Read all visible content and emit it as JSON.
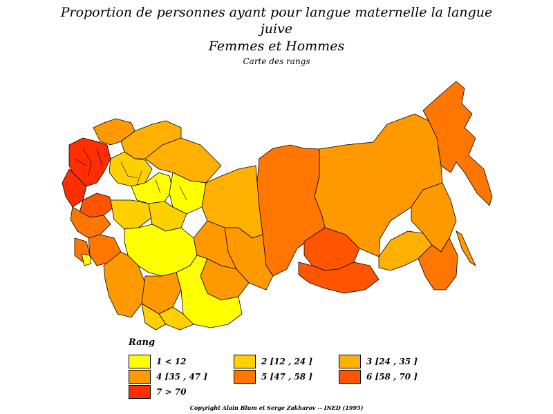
{
  "title_line1": "Proportion de personnes ayant pour langue maternelle la langue",
  "title_line2": "juive",
  "subtitle": "Femmes et Hommes",
  "caption": "Carte des rangs",
  "legend": {
    "title": "Rang",
    "items": [
      {
        "label": "1  <  12",
        "color": "#ffff00"
      },
      {
        "label": "2  [12 ,  24 ]",
        "color": "#ffd000"
      },
      {
        "label": "3  [24 ,  35 ]",
        "color": "#ffb000"
      },
      {
        "label": "4  [35 ,  47 ]",
        "color": "#ff9900"
      },
      {
        "label": "5  [47 ,  58 ]",
        "color": "#ff7700"
      },
      {
        "label": "6  [58 ,  70 ]",
        "color": "#ff5500"
      },
      {
        "label": "7  >  70",
        "color": "#ff2e00"
      }
    ]
  },
  "copyright": "Copyright Alain Blum et Serge Zakharov  --  INED (1995)"
}
